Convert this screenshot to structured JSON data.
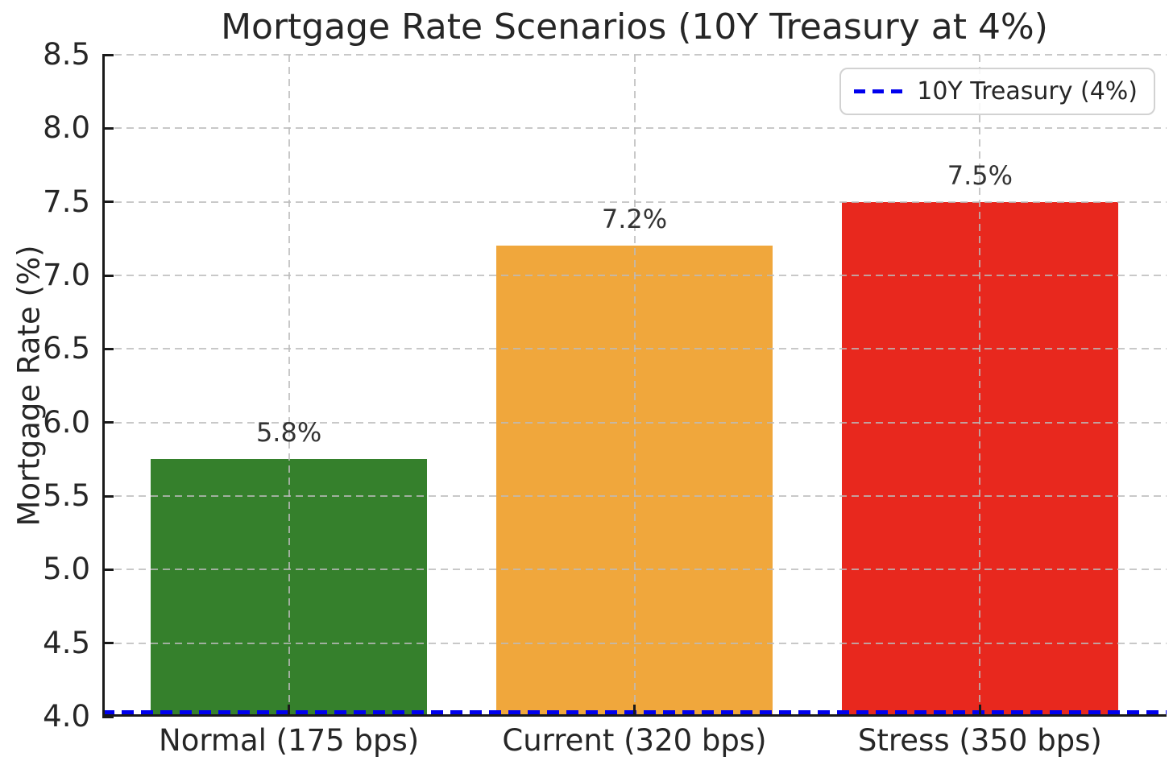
{
  "chart_data": {
    "type": "bar",
    "title": "Mortgage Rate Scenarios (10Y Treasury at 4%)",
    "ylabel": "Mortgage Rate (%)",
    "xlabel": "",
    "categories": [
      "Normal (175 bps)",
      "Current (320 bps)",
      "Stress (350 bps)"
    ],
    "values": [
      5.75,
      7.2,
      7.5
    ],
    "bar_value_labels": [
      "5.8%",
      "7.2%",
      "7.5%"
    ],
    "bar_colors": [
      "#35802C",
      "#F0A73C",
      "#E8281E"
    ],
    "baseline": 4.0,
    "ylim": [
      4.0,
      8.5
    ],
    "xlim": [
      -0.54,
      2.54
    ],
    "bar_width": 0.8,
    "yticks": [
      4.0,
      4.5,
      5.0,
      5.5,
      6.0,
      6.5,
      7.0,
      7.5,
      8.0,
      8.5
    ],
    "ytick_labels": [
      "4.0",
      "4.5",
      "5.0",
      "5.5",
      "6.0",
      "6.5",
      "7.0",
      "7.5",
      "8.0",
      "8.5"
    ],
    "grid": true,
    "grid_style": "dashed",
    "grid_color": "#c9c9c9",
    "reference_line": {
      "value": 4.0,
      "color": "#0000EE",
      "style": "dashed",
      "label": "10Y Treasury (4%)"
    },
    "legend": {
      "position": "upper right",
      "entries": [
        {
          "label": "10Y Treasury (4%)",
          "color": "#0000EE",
          "style": "dashed"
        }
      ]
    }
  }
}
